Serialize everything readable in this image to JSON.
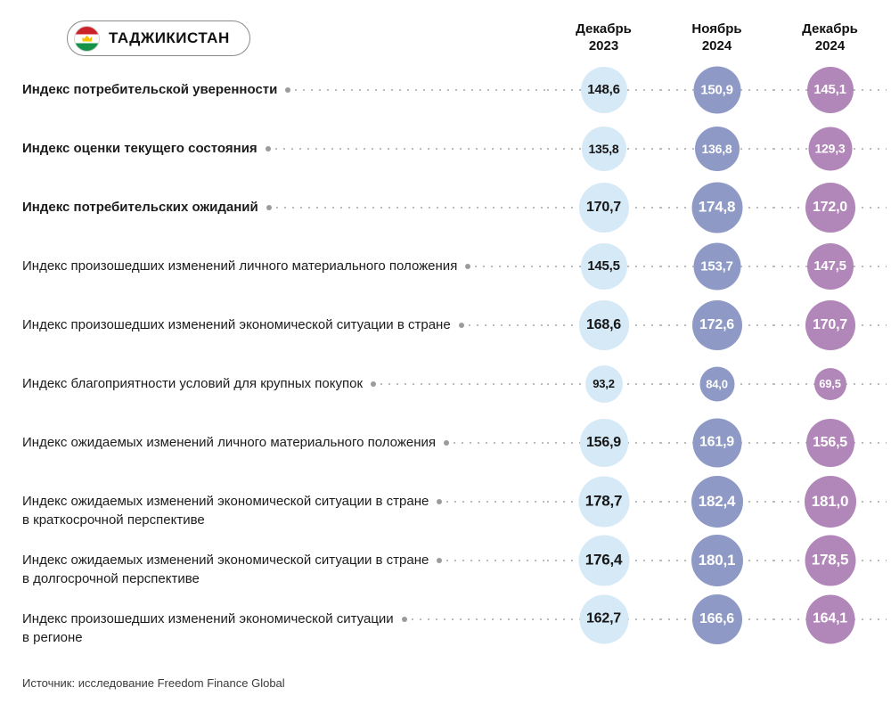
{
  "header": {
    "country_label": "ТАДЖИКИСТАН",
    "columns": [
      {
        "line1": "Декабрь",
        "line2": "2023"
      },
      {
        "line1": "Ноябрь",
        "line2": "2024"
      },
      {
        "line1": "Декабрь",
        "line2": "2024"
      }
    ]
  },
  "footer": {
    "source": "Источник: исследование Freedom Finance Global"
  },
  "colors": {
    "bubble_dec2023": "#d5e9f7",
    "bubble_nov2024": "#8e9ac5",
    "bubble_dec2024": "#b186b8",
    "leader": "#bcbcbc",
    "label_dot": "#9b9b9b",
    "flag_red": "#cc2229",
    "flag_green": "#159348",
    "flag_gold": "#f8c300"
  },
  "chart_data": {
    "type": "table",
    "title": "Индексы потребительской уверенности — Таджикистан",
    "legend_position": "top",
    "categories": [
      "Декабрь 2023",
      "Ноябрь 2024",
      "Декабрь 2024"
    ],
    "value_format": "comma-decimal, one digit",
    "rows": [
      {
        "label": "Индекс потребительской уверенности",
        "primary": true,
        "values": [
          148.6,
          150.9,
          145.1
        ]
      },
      {
        "label": "Индекс оценки текущего состояния",
        "primary": true,
        "values": [
          135.8,
          136.8,
          129.3
        ]
      },
      {
        "label": "Индекс потребительских ожиданий",
        "primary": true,
        "values": [
          170.7,
          174.8,
          172.0
        ]
      },
      {
        "label": "Индекс произошедших изменений личного материального положения",
        "primary": false,
        "values": [
          145.5,
          153.7,
          147.5
        ]
      },
      {
        "label": "Индекс произошедших изменений экономической ситуации в стране",
        "primary": false,
        "values": [
          168.6,
          172.6,
          170.7
        ]
      },
      {
        "label": "Индекс благоприятности условий для крупных покупок",
        "primary": false,
        "values": [
          93.2,
          84.0,
          69.5
        ]
      },
      {
        "label": "Индекс ожидаемых изменений личного материального положения",
        "primary": false,
        "values": [
          156.9,
          161.9,
          156.5
        ]
      },
      {
        "label": "Индекс ожидаемых изменений экономической ситуации в стране\nв краткосрочной перспективе",
        "primary": false,
        "values": [
          178.7,
          182.4,
          181.0
        ]
      },
      {
        "label": "Индекс ожидаемых изменений экономической ситуации в стране\nв долгосрочной перспективе",
        "primary": false,
        "values": [
          176.4,
          180.1,
          178.5
        ]
      },
      {
        "label": "Индекс произошедших изменений экономической ситуации\nв регионе",
        "primary": false,
        "values": [
          162.7,
          166.6,
          164.1
        ]
      }
    ]
  }
}
